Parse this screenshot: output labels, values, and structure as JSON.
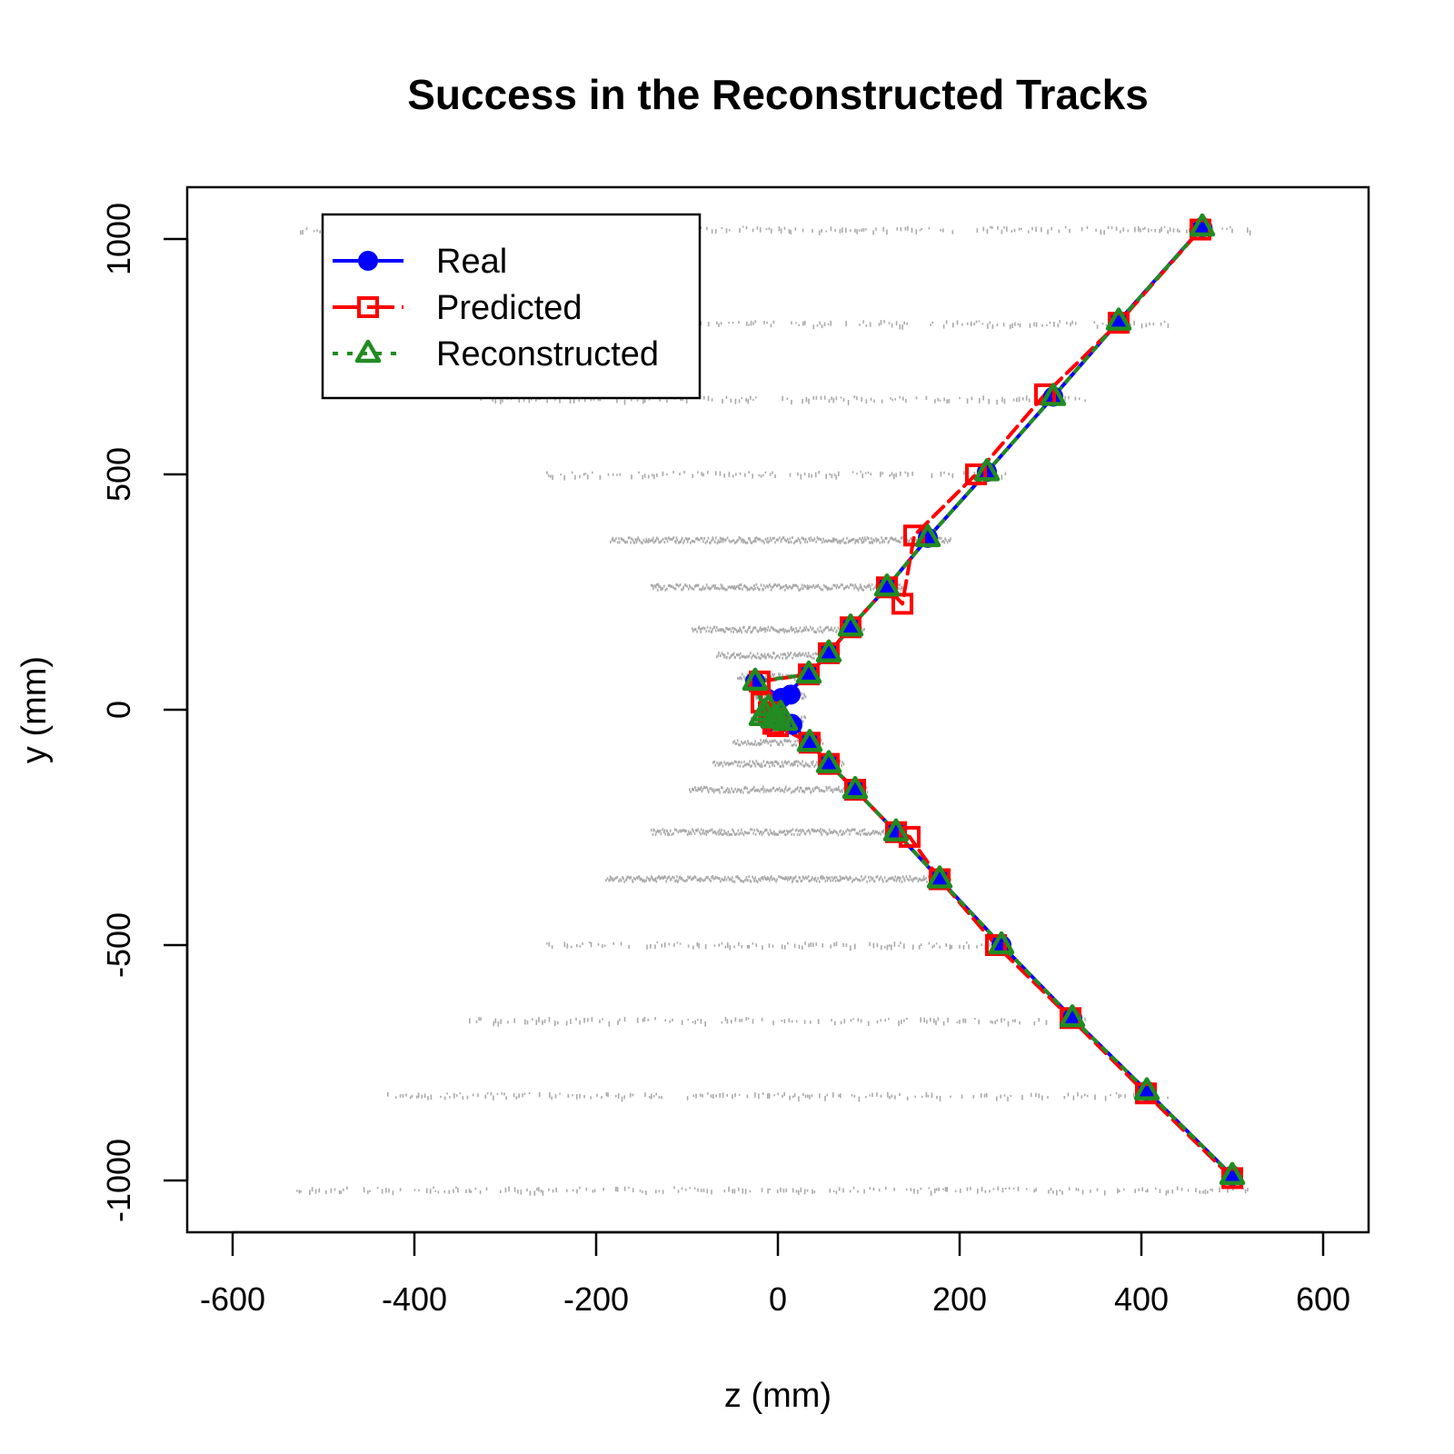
{
  "chart_data": {
    "type": "line",
    "title": "Success in the Reconstructed Tracks",
    "xlabel": "z (mm)",
    "ylabel": "y (mm)",
    "xlim": [
      -650,
      650
    ],
    "ylim": [
      -1110,
      1110
    ],
    "x_ticks": [
      -600,
      -400,
      -200,
      0,
      200,
      400,
      600
    ],
    "y_ticks": [
      -1000,
      -500,
      0,
      500,
      1000
    ],
    "x_tick_labels": [
      "-600",
      "-400",
      "-200",
      "0",
      "200",
      "400",
      "600"
    ],
    "y_tick_labels": [
      "-1000",
      "-500",
      "0",
      "500",
      "1000"
    ],
    "grid": false,
    "legend_position": "top-left",
    "colors": {
      "real": "#0000ff",
      "predicted": "#ff0000",
      "reconstructed": "#228b22",
      "background_hits": "#aaaaaa"
    },
    "series": [
      {
        "name": "Real",
        "marker": "filled-circle",
        "line": "solid",
        "color": "#0000ff",
        "tracks": [
          [
            [
              -2,
              -20
            ],
            [
              -10,
              -25
            ],
            [
              -25,
              60
            ],
            [
              4,
              25
            ],
            [
              34,
              75
            ],
            [
              56,
              120
            ],
            [
              80,
              175
            ],
            [
              120,
              260
            ],
            [
              165,
              365
            ],
            [
              230,
              505
            ],
            [
              303,
              665
            ],
            [
              375,
              825
            ],
            [
              467,
              1025
            ]
          ],
          [
            [
              5,
              -25
            ],
            [
              15,
              -30
            ],
            [
              35,
              -70
            ],
            [
              56,
              -115
            ],
            [
              85,
              -170
            ],
            [
              130,
              -260
            ],
            [
              178,
              -360
            ],
            [
              246,
              -500
            ],
            [
              324,
              -655
            ],
            [
              406,
              -810
            ],
            [
              500,
              -990
            ]
          ]
        ],
        "extra_points": [
          [
            14,
            32
          ],
          [
            16,
            -32
          ]
        ]
      },
      {
        "name": "Predicted",
        "marker": "open-square",
        "line": "dashed",
        "color": "#ff0000",
        "tracks": [
          [
            [
              -4,
              -20
            ],
            [
              -18,
              15
            ],
            [
              -20,
              60
            ],
            [
              34,
              75
            ],
            [
              56,
              120
            ],
            [
              80,
              175
            ],
            [
              120,
              260
            ],
            [
              137,
              225
            ],
            [
              150,
              370
            ],
            [
              218,
              500
            ],
            [
              294,
              670
            ],
            [
              375,
              822
            ],
            [
              465,
              1020
            ]
          ],
          [
            [
              -5,
              -30
            ],
            [
              35,
              -70
            ],
            [
              56,
              -115
            ],
            [
              85,
              -170
            ],
            [
              130,
              -260
            ],
            [
              145,
              -270
            ],
            [
              178,
              -360
            ],
            [
              240,
              -500
            ],
            [
              322,
              -655
            ],
            [
              405,
              -815
            ],
            [
              500,
              -995
            ]
          ]
        ],
        "extra_points": [
          [
            0,
            -35
          ],
          [
            -10,
            -5
          ]
        ]
      },
      {
        "name": "Reconstructed",
        "marker": "open-triangle",
        "line": "dotted",
        "color": "#228b22",
        "tracks": [
          [
            [
              0,
              -18
            ],
            [
              -15,
              -5
            ],
            [
              -25,
              60
            ],
            [
              34,
              75
            ],
            [
              56,
              120
            ],
            [
              80,
              175
            ],
            [
              120,
              260
            ],
            [
              165,
              365
            ],
            [
              230,
              505
            ],
            [
              303,
              665
            ],
            [
              375,
              825
            ],
            [
              467,
              1025
            ]
          ],
          [
            [
              0,
              -18
            ],
            [
              8,
              -25
            ],
            [
              35,
              -70
            ],
            [
              56,
              -115
            ],
            [
              85,
              -170
            ],
            [
              130,
              -260
            ],
            [
              178,
              -360
            ],
            [
              246,
              -500
            ],
            [
              324,
              -655
            ],
            [
              406,
              -810
            ],
            [
              500,
              -990
            ]
          ]
        ],
        "extra_points": [
          [
            -18,
            -15
          ],
          [
            -10,
            5
          ],
          [
            3,
            -8
          ],
          [
            -5,
            -20
          ]
        ]
      }
    ],
    "background_hit_layers": [
      {
        "y": 1020,
        "zmin": -530,
        "zmax": 520
      },
      {
        "y": 820,
        "zmin": -440,
        "zmax": 430
      },
      {
        "y": 660,
        "zmin": -340,
        "zmax": 340
      },
      {
        "y": 500,
        "zmin": -255,
        "zmax": 260
      },
      {
        "y": 360,
        "zmin": -185,
        "zmax": 190
      },
      {
        "y": 260,
        "zmin": -140,
        "zmax": 140
      },
      {
        "y": 170,
        "zmin": -95,
        "zmax": 95
      },
      {
        "y": 115,
        "zmin": -68,
        "zmax": 68
      },
      {
        "y": 70,
        "zmin": -45,
        "zmax": 45
      },
      {
        "y": 30,
        "zmin": -30,
        "zmax": 30
      },
      {
        "y": -20,
        "zmin": -30,
        "zmax": 30
      },
      {
        "y": -70,
        "zmin": -50,
        "zmax": 50
      },
      {
        "y": -115,
        "zmin": -72,
        "zmax": 72
      },
      {
        "y": -170,
        "zmin": -98,
        "zmax": 98
      },
      {
        "y": -260,
        "zmin": -140,
        "zmax": 140
      },
      {
        "y": -360,
        "zmin": -190,
        "zmax": 190
      },
      {
        "y": -500,
        "zmin": -255,
        "zmax": 255
      },
      {
        "y": -660,
        "zmin": -340,
        "zmax": 340
      },
      {
        "y": -820,
        "zmin": -430,
        "zmax": 430
      },
      {
        "y": -1020,
        "zmin": -530,
        "zmax": 520
      }
    ]
  }
}
